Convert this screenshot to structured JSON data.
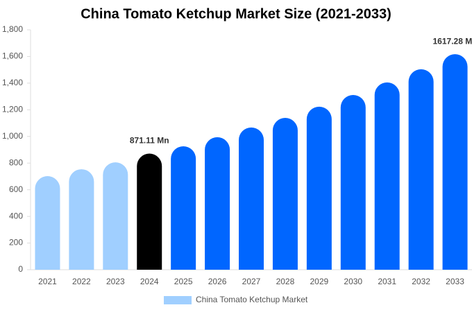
{
  "chart_data": {
    "type": "bar",
    "title": "China Tomato Ketchup Market Size (2021-2033)",
    "categories": [
      "2021",
      "2022",
      "2023",
      "2024",
      "2025",
      "2026",
      "2027",
      "2028",
      "2029",
      "2030",
      "2031",
      "2032",
      "2033"
    ],
    "series": [
      {
        "name": "China Tomato Ketchup Market",
        "color": "#a0cfff",
        "colors": [
          "#a0cfff",
          "#a0cfff",
          "#a0cfff",
          "#000000",
          "#0066ff",
          "#0066ff",
          "#0066ff",
          "#0066ff",
          "#0066ff",
          "#0066ff",
          "#0066ff",
          "#0066ff",
          "#0066ff"
        ],
        "values": [
          702,
          754,
          806,
          871.11,
          926,
          994,
          1067,
          1139,
          1223,
          1311,
          1405,
          1504,
          1617.28
        ],
        "value_labels": [
          null,
          null,
          null,
          "871.11 Mn",
          null,
          null,
          null,
          null,
          null,
          null,
          null,
          null,
          "1617.28 Mn"
        ]
      }
    ],
    "ylim": [
      0,
      1800
    ],
    "yticks": [
      0,
      200,
      400,
      600,
      800,
      {
        "value": 1000,
        "label": "1,000"
      },
      {
        "value": 1200,
        "label": "1,200"
      },
      {
        "value": 1400,
        "label": "1,400"
      },
      {
        "value": 1600,
        "label": "1,600"
      },
      {
        "value": 1800,
        "label": "1,800"
      }
    ],
    "grid": false
  }
}
